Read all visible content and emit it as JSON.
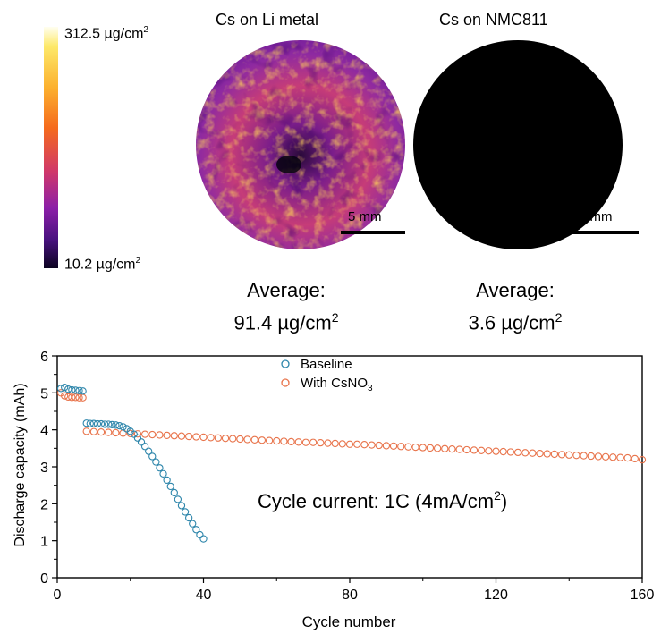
{
  "colorbar": {
    "max_value": "312.5",
    "max_unit": "µg/cm",
    "min_value": "10.2",
    "min_unit": "µg/cm",
    "exp": "2"
  },
  "maps": [
    {
      "title": "Cs on Li metal",
      "scale_label": "5 mm",
      "average_label": "Average:",
      "average_value": "91.4 µg/cm",
      "exp": "2"
    },
    {
      "title": "Cs on NMC811",
      "scale_label": "5 mm",
      "average_label": "Average:",
      "average_value": "3.6 µg/cm",
      "exp": "2"
    }
  ],
  "chart_data": {
    "type": "scatter",
    "xlabel": "Cycle number",
    "ylabel": "Discharge capacity (mAh)",
    "xlim": [
      0,
      160
    ],
    "ylim": [
      0,
      6
    ],
    "xticks": [
      0,
      40,
      80,
      120,
      160
    ],
    "yticks": [
      0,
      1,
      2,
      3,
      4,
      5,
      6
    ],
    "legend_position": "top-center",
    "annotation": {
      "text": "Cycle current: 1C (4mA/cm",
      "sup": "2",
      "close": ")"
    },
    "series": [
      {
        "name": "Baseline",
        "color": "#2e86ab",
        "x": [
          1,
          2,
          3,
          4,
          5,
          6,
          7,
          8,
          9,
          10,
          11,
          12,
          13,
          14,
          15,
          16,
          17,
          18,
          19,
          20,
          21,
          22,
          23,
          24,
          25,
          26,
          27,
          28,
          29,
          30,
          31,
          32,
          33,
          34,
          35,
          36,
          37,
          38,
          39,
          40
        ],
        "y": [
          5.12,
          5.15,
          5.1,
          5.08,
          5.07,
          5.06,
          5.05,
          4.18,
          4.17,
          4.17,
          4.16,
          4.16,
          4.15,
          4.15,
          4.14,
          4.13,
          4.11,
          4.08,
          4.03,
          3.96,
          3.88,
          3.78,
          3.67,
          3.55,
          3.42,
          3.28,
          3.13,
          2.97,
          2.81,
          2.64,
          2.47,
          2.3,
          2.12,
          1.95,
          1.78,
          1.62,
          1.46,
          1.3,
          1.16,
          1.05
        ]
      },
      {
        "name": "With CsNO",
        "name_sub": "3",
        "color": "#e8734a",
        "x": [
          1,
          2,
          3,
          4,
          5,
          6,
          7,
          8,
          10,
          12,
          14,
          16,
          18,
          20,
          22,
          24,
          26,
          28,
          30,
          32,
          34,
          36,
          38,
          40,
          42,
          44,
          46,
          48,
          50,
          52,
          54,
          56,
          58,
          60,
          62,
          64,
          66,
          68,
          70,
          72,
          74,
          76,
          78,
          80,
          82,
          84,
          86,
          88,
          90,
          92,
          94,
          96,
          98,
          100,
          102,
          104,
          106,
          108,
          110,
          112,
          114,
          116,
          118,
          120,
          122,
          124,
          126,
          128,
          130,
          132,
          134,
          136,
          138,
          140,
          142,
          144,
          146,
          148,
          150,
          152,
          154,
          156,
          158,
          160
        ],
        "y": [
          5.0,
          4.92,
          4.89,
          4.88,
          4.88,
          4.87,
          4.87,
          3.96,
          3.95,
          3.94,
          3.93,
          3.92,
          3.91,
          3.9,
          3.89,
          3.88,
          3.87,
          3.86,
          3.85,
          3.84,
          3.83,
          3.82,
          3.81,
          3.8,
          3.79,
          3.78,
          3.77,
          3.76,
          3.75,
          3.74,
          3.73,
          3.72,
          3.71,
          3.7,
          3.69,
          3.68,
          3.67,
          3.66,
          3.66,
          3.65,
          3.64,
          3.63,
          3.62,
          3.61,
          3.61,
          3.6,
          3.59,
          3.58,
          3.57,
          3.56,
          3.55,
          3.54,
          3.53,
          3.52,
          3.51,
          3.5,
          3.49,
          3.48,
          3.47,
          3.46,
          3.45,
          3.44,
          3.43,
          3.42,
          3.41,
          3.4,
          3.39,
          3.38,
          3.37,
          3.36,
          3.35,
          3.34,
          3.33,
          3.32,
          3.31,
          3.3,
          3.29,
          3.28,
          3.27,
          3.26,
          3.25,
          3.24,
          3.22,
          3.19
        ]
      }
    ]
  }
}
